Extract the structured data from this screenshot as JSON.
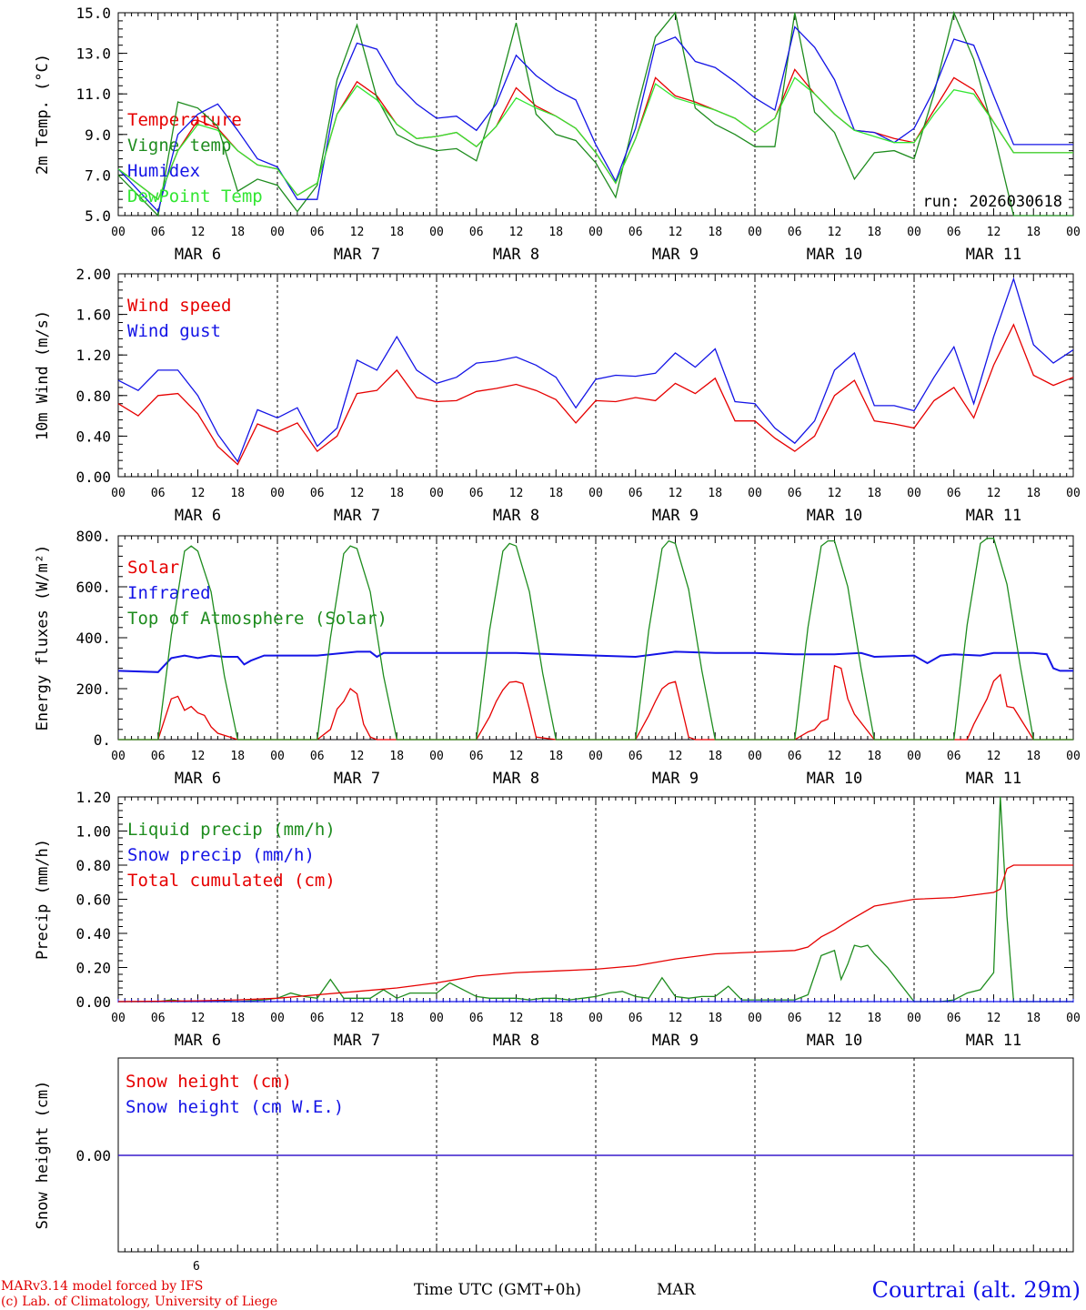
{
  "meta": {
    "run": "run: 2026030618",
    "model_line": "MARv3.14 model forced by IFS",
    "lab_line": "(c) Lab. of Climatology, University of Liege",
    "time_axis": "Time UTC (GMT+0h)",
    "month": "MAR",
    "month_superscript": "6",
    "station": "Courtrai (alt. 29m)"
  },
  "axis": {
    "hour_ticks": [
      "00",
      "06",
      "12",
      "18",
      "00",
      "06",
      "12",
      "18",
      "00",
      "06",
      "12",
      "18",
      "00",
      "06",
      "12",
      "18",
      "00",
      "06",
      "12",
      "18",
      "00",
      "06",
      "12",
      "18",
      "00"
    ],
    "days": [
      "MAR 6",
      "MAR 7",
      "MAR 8",
      "MAR 9",
      "MAR 10",
      "MAR 11"
    ]
  },
  "colors": {
    "red": "#e60000",
    "green": "#1e8c1e",
    "blue": "#1414e6",
    "lightgreen": "#32e632"
  },
  "chart_data": [
    {
      "type": "line",
      "ylabel": "2m Temp. (°C)",
      "ylim": [
        5.0,
        15.0
      ],
      "yticks": [
        "5.0",
        "7.0",
        "9.0",
        "11.0",
        "13.0",
        "15.0"
      ],
      "x_unit": "hours since MAR 6 00 UTC",
      "x": [
        0,
        6,
        9,
        12,
        15,
        18,
        21,
        24,
        27,
        30,
        33,
        36,
        39,
        42,
        45,
        48,
        51,
        54,
        57,
        60,
        63,
        66,
        69,
        72,
        75,
        78,
        81,
        84,
        87,
        90,
        93,
        96,
        99,
        102,
        105,
        108,
        111,
        114,
        117,
        120,
        123,
        126,
        129,
        132,
        135,
        138,
        141,
        144
      ],
      "series": [
        {
          "name": "Temperature",
          "color": "red",
          "values": [
            7.3,
            5.8,
            8.2,
            9.7,
            9.3,
            8.2,
            7.5,
            7.3,
            6.0,
            6.6,
            10.0,
            11.6,
            10.9,
            9.5,
            8.8,
            8.9,
            9.1,
            8.4,
            9.4,
            11.3,
            10.4,
            9.9,
            9.3,
            8.1,
            6.6,
            8.8,
            11.8,
            10.9,
            10.6,
            10.2,
            9.8,
            9.1,
            9.8,
            12.2,
            11.0,
            10.0,
            9.2,
            9.1,
            8.8,
            8.6,
            10.2,
            11.8,
            11.2,
            9.6,
            8.1,
            8.1,
            8.1,
            8.1
          ]
        },
        {
          "name": "Vigne temp",
          "color": "green",
          "values": [
            7.0,
            5.0,
            10.6,
            10.3,
            9.4,
            6.2,
            6.8,
            6.5,
            5.2,
            6.5,
            11.7,
            14.4,
            10.8,
            9.0,
            8.5,
            8.2,
            8.3,
            7.7,
            10.8,
            14.5,
            10.0,
            9.0,
            8.7,
            7.6,
            5.9,
            10.0,
            13.8,
            15.0,
            10.3,
            9.5,
            9.0,
            8.4,
            8.4,
            15.2,
            10.1,
            9.1,
            6.8,
            8.1,
            8.2,
            7.8,
            11.0,
            15.2,
            12.7,
            9.1,
            5.0,
            5.0,
            5.0,
            5.0
          ]
        },
        {
          "name": "Humidex",
          "color": "blue",
          "values": [
            7.3,
            5.2,
            9.0,
            10.0,
            10.5,
            9.2,
            7.8,
            7.4,
            5.8,
            5.8,
            11.2,
            13.5,
            13.2,
            11.5,
            10.5,
            9.8,
            9.9,
            9.2,
            10.5,
            12.9,
            11.9,
            11.2,
            10.7,
            8.5,
            6.7,
            9.3,
            13.4,
            13.8,
            12.6,
            12.3,
            11.6,
            10.8,
            10.2,
            14.3,
            13.3,
            11.7,
            9.2,
            9.1,
            8.6,
            9.3,
            11.2,
            13.7,
            13.4,
            10.9,
            8.5,
            8.5,
            8.5,
            8.5
          ]
        },
        {
          "name": "DewPoint Temp",
          "color": "lightgreen",
          "values": [
            7.3,
            5.8,
            8.2,
            9.5,
            9.2,
            8.2,
            7.5,
            7.3,
            6.0,
            6.6,
            10.0,
            11.4,
            10.7,
            9.5,
            8.8,
            8.9,
            9.1,
            8.4,
            9.4,
            10.8,
            10.3,
            9.9,
            9.3,
            8.1,
            6.6,
            8.8,
            11.5,
            10.8,
            10.5,
            10.2,
            9.8,
            9.1,
            9.8,
            11.8,
            11.0,
            10.0,
            9.2,
            8.9,
            8.6,
            8.6,
            10.0,
            11.2,
            11.0,
            9.6,
            8.1,
            8.1,
            8.1,
            8.1
          ]
        }
      ]
    },
    {
      "type": "line",
      "ylabel": "10m Wind (m/s)",
      "ylim": [
        0.0,
        2.0
      ],
      "yticks": [
        "0.00",
        "0.40",
        "0.80",
        "1.20",
        "1.60",
        "2.00"
      ],
      "x_unit": "hours since MAR 6 00 UTC",
      "x": [
        0,
        3,
        6,
        9,
        12,
        15,
        18,
        21,
        24,
        27,
        30,
        33,
        36,
        39,
        42,
        45,
        48,
        51,
        54,
        57,
        60,
        63,
        66,
        69,
        72,
        75,
        78,
        81,
        84,
        87,
        90,
        93,
        96,
        99,
        102,
        105,
        108,
        111,
        114,
        117,
        120,
        123,
        126,
        129,
        132,
        135,
        138,
        141,
        144
      ],
      "series": [
        {
          "name": "Wind speed",
          "color": "red",
          "values": [
            0.72,
            0.6,
            0.8,
            0.82,
            0.62,
            0.3,
            0.12,
            0.52,
            0.44,
            0.53,
            0.25,
            0.4,
            0.82,
            0.85,
            1.05,
            0.78,
            0.74,
            0.75,
            0.84,
            0.87,
            0.91,
            0.85,
            0.76,
            0.53,
            0.75,
            0.74,
            0.78,
            0.75,
            0.92,
            0.82,
            0.97,
            0.55,
            0.55,
            0.38,
            0.25,
            0.4,
            0.8,
            0.95,
            0.55,
            0.52,
            0.48,
            0.75,
            0.88,
            0.58,
            1.1,
            1.5,
            1.0,
            0.9,
            0.98
          ]
        },
        {
          "name": "Wind gust",
          "color": "blue",
          "values": [
            0.95,
            0.85,
            1.05,
            1.05,
            0.8,
            0.42,
            0.15,
            0.66,
            0.58,
            0.68,
            0.3,
            0.48,
            1.15,
            1.05,
            1.38,
            1.05,
            0.92,
            0.98,
            1.12,
            1.14,
            1.18,
            1.1,
            0.98,
            0.68,
            0.96,
            1.0,
            0.99,
            1.02,
            1.22,
            1.08,
            1.26,
            0.74,
            0.72,
            0.48,
            0.33,
            0.55,
            1.05,
            1.22,
            0.7,
            0.7,
            0.65,
            0.98,
            1.28,
            0.72,
            1.38,
            1.95,
            1.3,
            1.12,
            1.25
          ]
        }
      ]
    },
    {
      "type": "line",
      "ylabel": "Energy fluxes (W/m²)",
      "ylim": [
        0,
        800
      ],
      "yticks": [
        "0.",
        "200.",
        "400.",
        "600.",
        "800."
      ],
      "x_unit": "hours since MAR 6 00 UTC",
      "series": [
        {
          "name": "Solar",
          "color": "red",
          "x": [
            0,
            6,
            8,
            9,
            10,
            11,
            12,
            13,
            14,
            15,
            18,
            24,
            30,
            32,
            33,
            34,
            35,
            36,
            37,
            38,
            39,
            42,
            48,
            54,
            56,
            57,
            58,
            59,
            60,
            61,
            62,
            63,
            66,
            72,
            78,
            80,
            81,
            82,
            83,
            84,
            85,
            86,
            87,
            90,
            96,
            102,
            104,
            105,
            106,
            107,
            108,
            109,
            110,
            111,
            114,
            120,
            126,
            128,
            129,
            130,
            131,
            132,
            133,
            134,
            135,
            138,
            144
          ],
          "values": [
            0,
            0,
            160,
            170,
            115,
            130,
            105,
            95,
            50,
            25,
            0,
            0,
            0,
            40,
            120,
            150,
            200,
            180,
            60,
            10,
            0,
            0,
            0,
            0,
            90,
            150,
            195,
            225,
            228,
            220,
            120,
            10,
            0,
            0,
            0,
            95,
            150,
            200,
            220,
            228,
            120,
            10,
            0,
            0,
            0,
            0,
            30,
            40,
            70,
            80,
            290,
            280,
            160,
            100,
            0,
            0,
            0,
            0,
            60,
            110,
            160,
            230,
            255,
            130,
            125,
            0,
            0
          ]
        },
        {
          "name": "Infrared",
          "color": "blue",
          "x": [
            0,
            6,
            8,
            10,
            12,
            14,
            16,
            18,
            19,
            20,
            22,
            24,
            30,
            36,
            38,
            39,
            40,
            42,
            48,
            54,
            60,
            66,
            72,
            78,
            84,
            90,
            96,
            102,
            108,
            112,
            114,
            120,
            122,
            124,
            126,
            130,
            132,
            138,
            140,
            141,
            142,
            144
          ],
          "values": [
            270,
            265,
            320,
            330,
            320,
            330,
            325,
            325,
            295,
            310,
            330,
            330,
            330,
            345,
            345,
            325,
            340,
            340,
            340,
            340,
            340,
            335,
            330,
            325,
            345,
            340,
            340,
            335,
            335,
            340,
            325,
            330,
            300,
            330,
            335,
            330,
            340,
            340,
            335,
            280,
            270,
            270
          ]
        },
        {
          "name": "Top of Atmosphere (Solar)",
          "color": "green",
          "x": [
            0,
            6,
            8,
            10,
            11,
            12,
            14,
            16,
            18,
            24,
            30,
            32,
            34,
            35,
            36,
            38,
            40,
            42,
            48,
            54,
            56,
            58,
            59,
            60,
            62,
            64,
            66,
            72,
            78,
            80,
            82,
            83,
            84,
            86,
            88,
            90,
            96,
            102,
            104,
            106,
            107,
            108,
            110,
            112,
            114,
            120,
            126,
            128,
            130,
            131,
            132,
            134,
            136,
            138,
            144
          ],
          "values": [
            0,
            0,
            410,
            740,
            760,
            740,
            580,
            250,
            0,
            0,
            0,
            400,
            730,
            760,
            750,
            580,
            250,
            0,
            0,
            0,
            430,
            740,
            770,
            760,
            580,
            260,
            0,
            0,
            0,
            430,
            750,
            780,
            770,
            590,
            270,
            0,
            0,
            0,
            440,
            760,
            780,
            780,
            600,
            280,
            0,
            0,
            0,
            450,
            770,
            790,
            790,
            610,
            290,
            0,
            0
          ]
        }
      ]
    },
    {
      "type": "line",
      "ylabel": "Precip (mm/h)",
      "ylim": [
        0.0,
        1.2
      ],
      "yticks": [
        "0.00",
        "0.20",
        "0.40",
        "0.60",
        "0.80",
        "1.00",
        "1.20"
      ],
      "x_unit": "hours since MAR 6 00 UTC",
      "series": [
        {
          "name": "Liquid precip (mm/h)",
          "color": "green",
          "x": [
            0,
            6,
            8,
            10,
            14,
            18,
            22,
            24,
            26,
            28,
            30,
            32,
            34,
            36,
            38,
            40,
            42,
            44,
            46,
            48,
            50,
            52,
            54,
            56,
            58,
            60,
            62,
            64,
            66,
            68,
            70,
            72,
            74,
            76,
            78,
            80,
            82,
            84,
            86,
            88,
            90,
            92,
            94,
            96,
            98,
            100,
            102,
            104,
            106,
            108,
            109,
            110,
            111,
            112,
            113,
            114,
            116,
            118,
            120,
            122,
            124,
            126,
            128,
            130,
            132,
            133,
            134,
            135,
            136,
            137,
            138,
            144
          ],
          "values": [
            0,
            0,
            0.01,
            0,
            0.005,
            0,
            0.01,
            0.02,
            0.05,
            0.03,
            0.02,
            0.13,
            0.02,
            0.02,
            0.02,
            0.07,
            0.02,
            0.05,
            0.05,
            0.05,
            0.11,
            0.07,
            0.03,
            0.02,
            0.02,
            0.02,
            0.01,
            0.02,
            0.02,
            0.01,
            0.02,
            0.03,
            0.05,
            0.06,
            0.03,
            0.02,
            0.14,
            0.03,
            0.02,
            0.03,
            0.03,
            0.09,
            0.01,
            0.01,
            0.01,
            0.01,
            0.01,
            0.04,
            0.27,
            0.3,
            0.13,
            0.22,
            0.33,
            0.32,
            0.33,
            0.28,
            0.2,
            0.1,
            0.0,
            0,
            0,
            0.01,
            0.05,
            0.07,
            0.17,
            1.2,
            0.5,
            0,
            0,
            0,
            0,
            0
          ]
        },
        {
          "name": "Snow precip (mm/h)",
          "color": "blue",
          "x": [
            0,
            144
          ],
          "values": [
            0,
            0
          ]
        },
        {
          "name": "Total cumulated (cm)",
          "color": "red",
          "x": [
            0,
            12,
            18,
            24,
            30,
            36,
            42,
            48,
            54,
            60,
            66,
            72,
            78,
            84,
            90,
            96,
            102,
            104,
            106,
            108,
            110,
            114,
            120,
            126,
            130,
            132,
            133,
            134,
            135,
            138,
            144
          ],
          "values": [
            0,
            0.005,
            0.01,
            0.02,
            0.04,
            0.06,
            0.08,
            0.11,
            0.15,
            0.17,
            0.18,
            0.19,
            0.21,
            0.25,
            0.28,
            0.29,
            0.3,
            0.32,
            0.38,
            0.42,
            0.47,
            0.56,
            0.6,
            0.61,
            0.63,
            0.64,
            0.66,
            0.78,
            0.8,
            0.8,
            0.8
          ]
        }
      ]
    },
    {
      "type": "line",
      "ylabel": "Snow height (cm)",
      "yticks": [
        "0.00"
      ],
      "x_unit": "hours since MAR 6 00 UTC",
      "series": [
        {
          "name": "Snow height (cm)",
          "color": "red",
          "x": [
            0,
            144
          ],
          "values": [
            0,
            0
          ]
        },
        {
          "name": "Snow height (cm W.E.)",
          "color": "blue",
          "x": [
            0,
            144
          ],
          "values": [
            0,
            0
          ]
        }
      ]
    }
  ]
}
